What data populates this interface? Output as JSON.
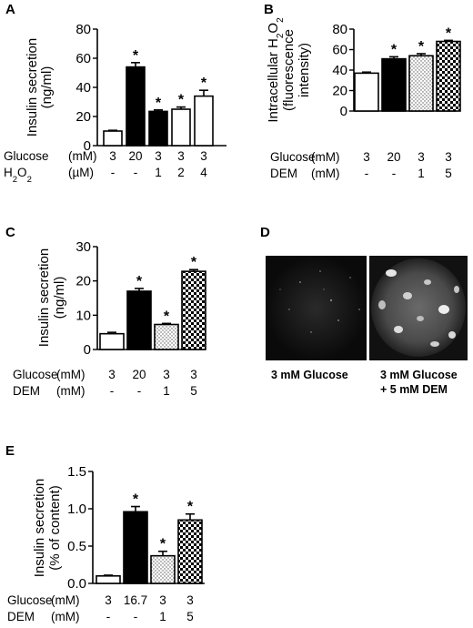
{
  "chart_data": [
    {
      "panel": "A",
      "type": "bar",
      "ylabel": [
        "Insulin secretion",
        "(ng/ml)"
      ],
      "ylim": [
        0,
        80
      ],
      "yticks": [
        0,
        20,
        40,
        60,
        80
      ],
      "values": [
        10,
        54,
        23.5,
        25,
        34
      ],
      "errors": [
        0.5,
        3,
        1,
        1.5,
        4
      ],
      "fills": [
        "white",
        "black",
        "black",
        "white",
        "white"
      ],
      "significant": [
        false,
        true,
        true,
        true,
        true
      ],
      "significance_mark": "*",
      "conditions": [
        {
          "name": "Glucose",
          "unit": "(mM)",
          "values": [
            "3",
            "20",
            "3",
            "3",
            "3"
          ]
        },
        {
          "name": "H2O2",
          "unit": "(µM)",
          "values": [
            "-",
            "-",
            "1",
            "2",
            "4"
          ]
        }
      ]
    },
    {
      "panel": "B",
      "type": "bar",
      "ylabel": [
        "Intracellular H2O2",
        "(fluorescence",
        "intensity)"
      ],
      "ylim": [
        0,
        80
      ],
      "yticks": [
        0,
        20,
        40,
        60,
        80
      ],
      "values": [
        37,
        51,
        54,
        68
      ],
      "errors": [
        1,
        2,
        2,
        1
      ],
      "fills": [
        "white",
        "black",
        "dots",
        "checker"
      ],
      "significant": [
        false,
        true,
        true,
        true
      ],
      "significance_mark": "*",
      "conditions": [
        {
          "name": "Glucose",
          "unit": "(mM)",
          "values": [
            "3",
            "20",
            "3",
            "3"
          ]
        },
        {
          "name": "DEM",
          "unit": "(mM)",
          "values": [
            "-",
            "-",
            "1",
            "5"
          ]
        }
      ]
    },
    {
      "panel": "C",
      "type": "bar",
      "ylabel": [
        "Insulin secretion",
        "(ng/ml)"
      ],
      "ylim": [
        0,
        30
      ],
      "yticks": [
        0,
        10,
        20,
        30
      ],
      "values": [
        4.6,
        17,
        7.3,
        22.8
      ],
      "errors": [
        0.4,
        0.8,
        0.3,
        0.5
      ],
      "fills": [
        "white",
        "black",
        "dots",
        "checker"
      ],
      "significant": [
        false,
        true,
        true,
        true
      ],
      "significance_mark": "*",
      "conditions": [
        {
          "name": "Glucose",
          "unit": "(mM)",
          "values": [
            "3",
            "20",
            "3",
            "3"
          ]
        },
        {
          "name": "DEM",
          "unit": "(mM)",
          "values": [
            "-",
            "-",
            "1",
            "5"
          ]
        }
      ]
    },
    {
      "panel": "E",
      "type": "bar",
      "ylabel": [
        "Insulin secretion",
        "(% of content)"
      ],
      "ylim": [
        0,
        1.5
      ],
      "yticks": [
        "0.0",
        "0.5",
        "1.0",
        "1.5"
      ],
      "values": [
        0.1,
        0.96,
        0.37,
        0.85
      ],
      "errors": [
        0.01,
        0.07,
        0.06,
        0.08
      ],
      "fills": [
        "white",
        "black",
        "dots",
        "checker"
      ],
      "significant": [
        false,
        true,
        true,
        true
      ],
      "significance_mark": "*",
      "conditions": [
        {
          "name": "Glucose",
          "unit": "(mM)",
          "values": [
            "3",
            "16.7",
            "3",
            "3"
          ]
        },
        {
          "name": "DEM",
          "unit": "(mM)",
          "values": [
            "-",
            "-",
            "1",
            "5"
          ]
        }
      ]
    }
  ],
  "panel_d": {
    "label": "D",
    "left_caption": [
      "3 mM Glucose"
    ],
    "right_caption": [
      "3 mM Glucose",
      "+ 5 mM DEM"
    ]
  }
}
